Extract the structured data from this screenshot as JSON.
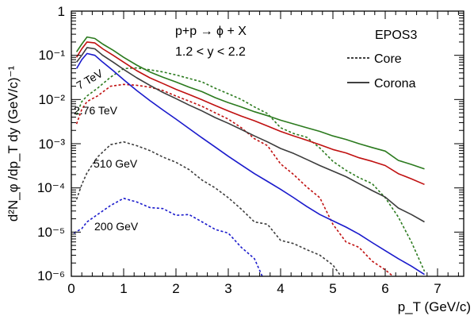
{
  "chart_data": {
    "type": "line",
    "xlabel": "p_T (GeV/c)",
    "ylabel": "d²N_φ /dp_T dy (GeV/c)⁻¹",
    "xlim": [
      0,
      7.5
    ],
    "ylim": [
      1e-06,
      1
    ],
    "yscale": "log",
    "grid": false,
    "x_ticks": [
      "0",
      "1",
      "2",
      "3",
      "4",
      "5",
      "6",
      "7"
    ],
    "y_ticks": [
      "1",
      "10⁻¹",
      "10⁻²",
      "10⁻³",
      "10⁻⁴",
      "10⁻⁵",
      "10⁻⁶"
    ],
    "annotations": {
      "reaction": "p+p → ϕ + X",
      "rapidity": "1.2 < y < 2.2",
      "model": "EPOS3"
    },
    "legend": {
      "placement": "top-right",
      "entries": [
        {
          "label": "Core",
          "style": "dashed"
        },
        {
          "label": "Corona",
          "style": "solid"
        }
      ]
    },
    "energy_labels": [
      {
        "text": "7 TeV",
        "color": "#2b7a1e"
      },
      {
        "text": "2.76 TeV",
        "color": "#c01010"
      },
      {
        "text": "510 GeV",
        "color": "#555555"
      },
      {
        "text": "200 GeV",
        "color": "#1a1acc"
      }
    ],
    "series": [
      {
        "energy": "7 TeV",
        "component": "Corona",
        "color": "#2b7a1e",
        "style": "solid",
        "points": [
          [
            0.1,
            0.12
          ],
          [
            0.2,
            0.18
          ],
          [
            0.3,
            0.26
          ],
          [
            0.45,
            0.24
          ],
          [
            0.6,
            0.18
          ],
          [
            0.8,
            0.13
          ],
          [
            1.0,
            0.09
          ],
          [
            1.25,
            0.06
          ],
          [
            1.5,
            0.042
          ],
          [
            1.75,
            0.032
          ],
          [
            2.0,
            0.025
          ],
          [
            2.25,
            0.019
          ],
          [
            2.5,
            0.015
          ],
          [
            2.75,
            0.011
          ],
          [
            3.0,
            0.0085
          ],
          [
            3.25,
            0.0068
          ],
          [
            3.5,
            0.0053
          ],
          [
            3.75,
            0.0043
          ],
          [
            4.0,
            0.0034
          ],
          [
            4.25,
            0.0028
          ],
          [
            4.5,
            0.0023
          ],
          [
            4.75,
            0.0019
          ],
          [
            5.0,
            0.0015
          ],
          [
            5.25,
            0.00125
          ],
          [
            5.5,
            0.001
          ],
          [
            5.75,
            0.00082
          ],
          [
            6.0,
            0.00068
          ],
          [
            6.25,
            0.00042
          ],
          [
            6.5,
            0.00034
          ],
          [
            6.75,
            0.00027
          ]
        ]
      },
      {
        "energy": "7 TeV",
        "component": "Core",
        "color": "#2b7a1e",
        "style": "dashed",
        "points": [
          [
            0.1,
            0.0045
          ],
          [
            0.2,
            0.009
          ],
          [
            0.3,
            0.012
          ],
          [
            0.5,
            0.018
          ],
          [
            0.75,
            0.032
          ],
          [
            1.0,
            0.05
          ],
          [
            1.25,
            0.052
          ],
          [
            1.5,
            0.047
          ],
          [
            1.75,
            0.042
          ],
          [
            2.0,
            0.036
          ],
          [
            2.25,
            0.03
          ],
          [
            2.5,
            0.025
          ],
          [
            2.75,
            0.018
          ],
          [
            3.0,
            0.0135
          ],
          [
            3.25,
            0.01
          ],
          [
            3.5,
            0.0068
          ],
          [
            3.75,
            0.0048
          ],
          [
            4.0,
            0.0023
          ],
          [
            4.25,
            0.0017
          ],
          [
            4.5,
            0.0014
          ],
          [
            4.75,
            0.0008
          ],
          [
            5.0,
            0.0004
          ],
          [
            5.25,
            0.00025
          ],
          [
            5.5,
            0.00017
          ],
          [
            5.75,
            0.000125
          ],
          [
            6.0,
            6e-05
          ],
          [
            6.25,
            2.2e-05
          ],
          [
            6.5,
            6e-06
          ],
          [
            6.75,
            1.3e-06
          ]
        ]
      },
      {
        "energy": "2.76 TeV",
        "component": "Corona",
        "color": "#c01010",
        "style": "solid",
        "points": [
          [
            0.1,
            0.09
          ],
          [
            0.2,
            0.14
          ],
          [
            0.3,
            0.2
          ],
          [
            0.45,
            0.19
          ],
          [
            0.6,
            0.14
          ],
          [
            0.8,
            0.1
          ],
          [
            1.0,
            0.07
          ],
          [
            1.25,
            0.045
          ],
          [
            1.5,
            0.031
          ],
          [
            1.75,
            0.023
          ],
          [
            2.0,
            0.017
          ],
          [
            2.25,
            0.013
          ],
          [
            2.5,
            0.0098
          ],
          [
            2.75,
            0.0073
          ],
          [
            3.0,
            0.0055
          ],
          [
            3.25,
            0.0042
          ],
          [
            3.5,
            0.0033
          ],
          [
            3.75,
            0.0025
          ],
          [
            4.0,
            0.0019
          ],
          [
            4.25,
            0.0015
          ],
          [
            4.5,
            0.0012
          ],
          [
            4.75,
            0.00095
          ],
          [
            5.0,
            0.00074
          ],
          [
            5.25,
            0.00062
          ],
          [
            5.5,
            0.00048
          ],
          [
            5.75,
            0.0004
          ],
          [
            6.0,
            0.00032
          ],
          [
            6.25,
            0.00021
          ],
          [
            6.5,
            0.00016
          ],
          [
            6.75,
            0.00012
          ]
        ]
      },
      {
        "energy": "2.76 TeV",
        "component": "Core",
        "color": "#c01010",
        "style": "dashed",
        "points": [
          [
            0.1,
            0.0028
          ],
          [
            0.2,
            0.006
          ],
          [
            0.3,
            0.009
          ],
          [
            0.5,
            0.012
          ],
          [
            0.75,
            0.02
          ],
          [
            1.0,
            0.022
          ],
          [
            1.25,
            0.021
          ],
          [
            1.5,
            0.019
          ],
          [
            1.75,
            0.016
          ],
          [
            2.0,
            0.012
          ],
          [
            2.25,
            0.0092
          ],
          [
            2.5,
            0.007
          ],
          [
            2.75,
            0.005
          ],
          [
            3.0,
            0.0036
          ],
          [
            3.25,
            0.0023
          ],
          [
            3.5,
            0.0013
          ],
          [
            3.75,
            0.0009
          ],
          [
            4.0,
            0.00035
          ],
          [
            4.25,
            0.0002
          ],
          [
            4.5,
            0.000105
          ],
          [
            4.75,
            6e-05
          ],
          [
            5.0,
            1.5e-05
          ],
          [
            5.25,
            6e-06
          ],
          [
            5.5,
            4.5e-06
          ],
          [
            5.75,
            2.2e-06
          ],
          [
            6.0,
            1.4e-06
          ],
          [
            6.25,
            8e-07
          ]
        ]
      },
      {
        "energy": "510 GeV",
        "component": "Corona",
        "color": "#3c3c3c",
        "style": "solid",
        "points": [
          [
            0.1,
            0.07
          ],
          [
            0.2,
            0.1
          ],
          [
            0.3,
            0.15
          ],
          [
            0.45,
            0.14
          ],
          [
            0.6,
            0.1
          ],
          [
            0.8,
            0.07
          ],
          [
            1.0,
            0.048
          ],
          [
            1.25,
            0.031
          ],
          [
            1.5,
            0.021
          ],
          [
            1.75,
            0.0145
          ],
          [
            2.0,
            0.0105
          ],
          [
            2.25,
            0.0075
          ],
          [
            2.5,
            0.0055
          ],
          [
            2.75,
            0.0039
          ],
          [
            3.0,
            0.0029
          ],
          [
            3.25,
            0.0021
          ],
          [
            3.5,
            0.0015
          ],
          [
            3.75,
            0.0011
          ],
          [
            4.0,
            0.00078
          ],
          [
            4.25,
            0.0006
          ],
          [
            4.5,
            0.00044
          ],
          [
            4.75,
            0.00032
          ],
          [
            5.0,
            0.00024
          ],
          [
            5.25,
            0.00018
          ],
          [
            5.5,
            0.000125
          ],
          [
            5.75,
            8.7e-05
          ],
          [
            6.0,
            6.2e-05
          ],
          [
            6.25,
            3.5e-05
          ],
          [
            6.5,
            2.5e-05
          ],
          [
            6.75,
            1.7e-05
          ]
        ]
      },
      {
        "energy": "510 GeV",
        "component": "Core",
        "color": "#3c3c3c",
        "style": "dashed",
        "points": [
          [
            0.1,
            5.5e-05
          ],
          [
            0.2,
            0.00012
          ],
          [
            0.3,
            0.00022
          ],
          [
            0.5,
            0.0005
          ],
          [
            0.75,
            0.00095
          ],
          [
            1.0,
            0.0011
          ],
          [
            1.25,
            0.0009
          ],
          [
            1.5,
            0.0007
          ],
          [
            1.75,
            0.0005
          ],
          [
            2.0,
            0.00038
          ],
          [
            2.25,
            0.00026
          ],
          [
            2.5,
            0.00015
          ],
          [
            2.75,
            0.0001
          ],
          [
            3.0,
            6e-05
          ],
          [
            3.25,
            3.3e-05
          ],
          [
            3.5,
            1.7e-05
          ],
          [
            3.75,
            1.5e-05
          ],
          [
            4.0,
            6.5e-06
          ],
          [
            4.25,
            5.5e-06
          ],
          [
            4.5,
            4e-06
          ],
          [
            4.75,
            3e-06
          ],
          [
            5.0,
            1.8e-06
          ],
          [
            5.25,
            7e-07
          ]
        ]
      },
      {
        "energy": "200 GeV",
        "component": "Corona",
        "color": "#1a1acc",
        "style": "solid",
        "points": [
          [
            0.1,
            0.05
          ],
          [
            0.2,
            0.08
          ],
          [
            0.3,
            0.11
          ],
          [
            0.45,
            0.1
          ],
          [
            0.6,
            0.07
          ],
          [
            0.8,
            0.045
          ],
          [
            1.0,
            0.028
          ],
          [
            1.25,
            0.016
          ],
          [
            1.5,
            0.0095
          ],
          [
            1.75,
            0.0058
          ],
          [
            2.0,
            0.0036
          ],
          [
            2.25,
            0.0022
          ],
          [
            2.5,
            0.00135
          ],
          [
            2.75,
            0.00084
          ],
          [
            3.0,
            0.00052
          ],
          [
            3.25,
            0.00033
          ],
          [
            3.5,
            0.00021
          ],
          [
            3.75,
            0.00014
          ],
          [
            4.0,
            9.3e-05
          ],
          [
            4.25,
            6e-05
          ],
          [
            4.5,
            3.8e-05
          ],
          [
            4.75,
            2.5e-05
          ],
          [
            5.0,
            1.8e-05
          ],
          [
            5.25,
            1.3e-05
          ],
          [
            5.5,
            9e-06
          ],
          [
            5.75,
            5.8e-06
          ],
          [
            6.0,
            3.8e-06
          ],
          [
            6.25,
            2.5e-06
          ],
          [
            6.5,
            1.7e-06
          ],
          [
            6.75,
            1.1e-06
          ]
        ]
      },
      {
        "energy": "200 GeV",
        "component": "Core",
        "color": "#1a1acc",
        "style": "dashed",
        "points": [
          [
            0.05,
            9.5e-06
          ],
          [
            0.2,
            1.2e-05
          ],
          [
            0.3,
            1.7e-05
          ],
          [
            0.5,
            2.5e-05
          ],
          [
            0.75,
            4e-05
          ],
          [
            1.0,
            5.8e-05
          ],
          [
            1.25,
            4.8e-05
          ],
          [
            1.5,
            3.6e-05
          ],
          [
            1.75,
            3.4e-05
          ],
          [
            2.0,
            2.4e-05
          ],
          [
            2.25,
            2.5e-05
          ],
          [
            2.5,
            1.7e-05
          ],
          [
            2.75,
            1.15e-05
          ],
          [
            3.0,
            9.5e-06
          ],
          [
            3.25,
            4.5e-06
          ],
          [
            3.5,
            2.5e-06
          ],
          [
            3.65,
            1e-06
          ],
          [
            3.75,
            5e-07
          ]
        ]
      }
    ]
  }
}
